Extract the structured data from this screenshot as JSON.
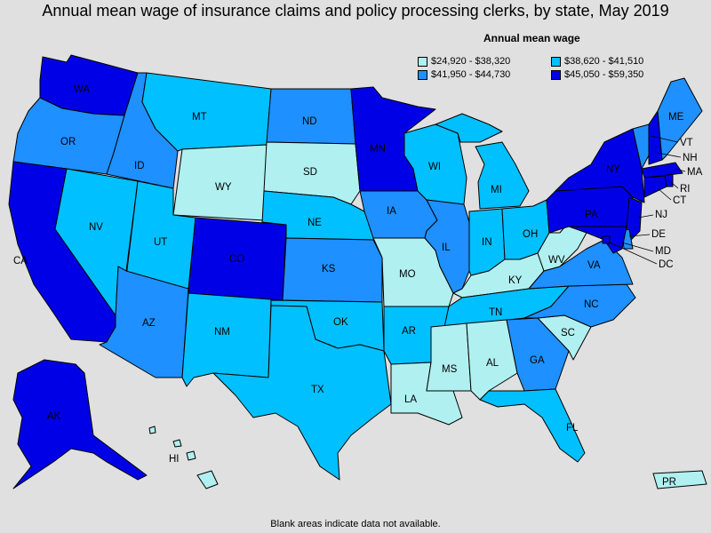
{
  "title": "Annual mean wage of insurance claims and policy processing clerks, by state, May 2019",
  "legend": {
    "title": "Annual mean wage",
    "items": [
      {
        "label": "$24,920 - $38,320",
        "color": "#b0f0f0"
      },
      {
        "label": "$38,620 - $41,510",
        "color": "#00c0ff"
      },
      {
        "label": "$41,950 - $44,730",
        "color": "#1e90ff"
      },
      {
        "label": "$45,050 - $59,350",
        "color": "#0000e6"
      }
    ]
  },
  "footnote": "Blank areas indicate data not available.",
  "states": {
    "WA": {
      "label": "WA",
      "tier": 3
    },
    "OR": {
      "label": "OR",
      "tier": 2
    },
    "CA": {
      "label": "CA",
      "tier": 3
    },
    "ID": {
      "label": "ID",
      "tier": 2
    },
    "NV": {
      "label": "NV",
      "tier": 1
    },
    "MT": {
      "label": "MT",
      "tier": 1
    },
    "WY": {
      "label": "WY",
      "tier": 0
    },
    "UT": {
      "label": "UT",
      "tier": 1
    },
    "CO": {
      "label": "CO",
      "tier": 3
    },
    "AZ": {
      "label": "AZ",
      "tier": 2
    },
    "NM": {
      "label": "NM",
      "tier": 1
    },
    "ND": {
      "label": "ND",
      "tier": 2
    },
    "SD": {
      "label": "SD",
      "tier": 0
    },
    "NE": {
      "label": "NE",
      "tier": 1
    },
    "KS": {
      "label": "KS",
      "tier": 2
    },
    "OK": {
      "label": "OK",
      "tier": 1
    },
    "TX": {
      "label": "TX",
      "tier": 1
    },
    "MN": {
      "label": "MN",
      "tier": 3
    },
    "IA": {
      "label": "IA",
      "tier": 2
    },
    "MO": {
      "label": "MO",
      "tier": 0
    },
    "AR": {
      "label": "AR",
      "tier": 1
    },
    "LA": {
      "label": "LA",
      "tier": 0
    },
    "WI": {
      "label": "WI",
      "tier": 1
    },
    "IL": {
      "label": "IL",
      "tier": 2
    },
    "MI": {
      "label": "MI",
      "tier": 1
    },
    "IN": {
      "label": "IN",
      "tier": 1
    },
    "OH": {
      "label": "OH",
      "tier": 1
    },
    "KY": {
      "label": "KY",
      "tier": 0
    },
    "TN": {
      "label": "TN",
      "tier": 1
    },
    "MS": {
      "label": "MS",
      "tier": 0
    },
    "AL": {
      "label": "AL",
      "tier": 0
    },
    "GA": {
      "label": "GA",
      "tier": 2
    },
    "FL": {
      "label": "FL",
      "tier": 1
    },
    "SC": {
      "label": "SC",
      "tier": 0
    },
    "NC": {
      "label": "NC",
      "tier": 2
    },
    "VA": {
      "label": "VA",
      "tier": 2
    },
    "WV": {
      "label": "WV",
      "tier": 0
    },
    "PA": {
      "label": "PA",
      "tier": 3
    },
    "NY": {
      "label": "NY",
      "tier": 3
    },
    "VT": {
      "label": "VT",
      "tier": 2
    },
    "NH": {
      "label": "NH",
      "tier": 3
    },
    "ME": {
      "label": "ME",
      "tier": 2
    },
    "MA": {
      "label": "MA",
      "tier": 3
    },
    "RI": {
      "label": "RI",
      "tier": 3
    },
    "CT": {
      "label": "CT",
      "tier": 3
    },
    "NJ": {
      "label": "NJ",
      "tier": 3
    },
    "DE": {
      "label": "DE",
      "tier": 2
    },
    "MD": {
      "label": "MD",
      "tier": 3
    },
    "DC": {
      "label": "DC",
      "tier": 3
    },
    "AK": {
      "label": "AK",
      "tier": 3
    },
    "HI": {
      "label": "HI",
      "tier": 0
    },
    "PR": {
      "label": "PR",
      "tier": 0
    }
  }
}
